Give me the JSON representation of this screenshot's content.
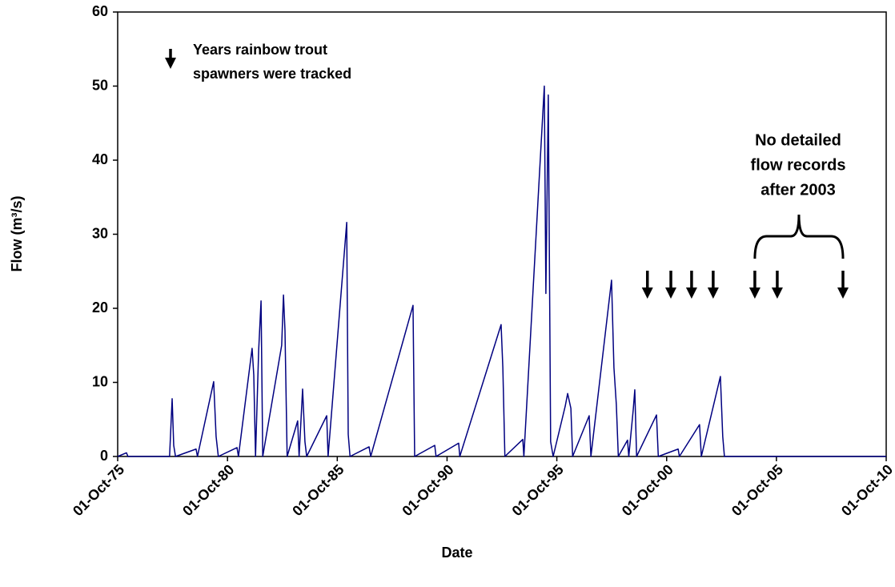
{
  "chart_data": {
    "type": "line",
    "xlabel": "Date",
    "ylabel": "Flow (m³/s)",
    "x": [
      "1975-10-01",
      "1976-02-24",
      "1976-03-20",
      "1978-02-10",
      "1978-03-25",
      "1978-04-20",
      "1978-05-20",
      "1979-04-27",
      "1979-05-20",
      "1980-02-14",
      "1980-03-25",
      "1980-05-01",
      "1981-03-08",
      "1981-04-01",
      "1981-11-14",
      "1981-12-12",
      "1982-01-10",
      "1982-03-03",
      "1982-04-12",
      "1982-05-10",
      "1983-03-21",
      "1983-04-20",
      "1983-05-15",
      "1983-06-20",
      "1983-12-12",
      "1984-01-05",
      "1984-03-03",
      "1984-04-11",
      "1984-05-10",
      "1985-04-08",
      "1985-05-01",
      "1986-03-07",
      "1986-04-01",
      "1986-05-01",
      "1987-03-14",
      "1987-04-10",
      "1989-03-14",
      "1989-04-10",
      "1990-03-10",
      "1990-04-01",
      "1991-04-12",
      "1991-05-01",
      "1993-03-18",
      "1993-04-16",
      "1993-05-20",
      "1994-03-14",
      "1994-04-01",
      "1995-03-07",
      "1995-04-02",
      "1995-05-12",
      "1995-06-20",
      "1995-08-01",
      "1996-02-18",
      "1996-03-29",
      "1996-05-22",
      "1996-06-20",
      "1997-03-22",
      "1997-04-20",
      "1998-03-29",
      "1998-05-08",
      "1998-06-17",
      "1998-07-20",
      "1998-12-20",
      "1999-01-10",
      "1999-03-25",
      "1999-04-20",
      "1999-05-20",
      "2000-04-15",
      "2000-05-15",
      "2001-04-10",
      "2001-05-01",
      "2002-04-01",
      "2002-05-01",
      "2003-03-14",
      "2003-04-22",
      "2003-05-20",
      "2010-10-01"
    ],
    "series": [
      {
        "name": "Flow",
        "color": "#000080",
        "values": [
          0,
          0.5,
          0,
          0,
          7.8,
          1.5,
          0,
          1.0,
          0,
          10.1,
          2.7,
          0,
          1.2,
          0,
          14.6,
          11,
          0,
          14.3,
          21,
          0,
          15,
          21.8,
          17,
          0,
          4.8,
          0,
          9.1,
          2,
          0,
          5.5,
          0,
          31.6,
          3,
          0,
          1.3,
          0,
          20.4,
          0,
          1.5,
          0,
          1.8,
          0,
          17.8,
          12,
          0,
          2.3,
          0,
          50,
          22,
          48.8,
          2,
          0,
          6.8,
          8.5,
          6.5,
          0,
          5.5,
          0,
          23.8,
          12,
          7,
          0,
          2.2,
          0,
          6.3,
          9,
          0,
          5.6,
          0,
          1,
          0,
          4.3,
          0,
          10.8,
          2.7,
          0,
          0
        ]
      }
    ],
    "xlim": [
      "1975-10-01",
      "2010-10-01"
    ],
    "xticks": [
      {
        "value": "1975-10-01",
        "label": "01-Oct-75"
      },
      {
        "value": "1980-10-01",
        "label": "01-Oct-80"
      },
      {
        "value": "1985-10-01",
        "label": "01-Oct-85"
      },
      {
        "value": "1990-10-01",
        "label": "01-Oct-90"
      },
      {
        "value": "1995-10-01",
        "label": "01-Oct-95"
      },
      {
        "value": "2000-10-01",
        "label": "01-Oct-00"
      },
      {
        "value": "2005-10-01",
        "label": "01-Oct-05"
      },
      {
        "value": "2010-10-01",
        "label": "01-Oct-10"
      }
    ],
    "ylim": [
      0,
      60
    ],
    "yticks": [
      0,
      10,
      20,
      30,
      40,
      50,
      60
    ],
    "legend_text": [
      "Years rainbow trout",
      "spawners were tracked"
    ],
    "tracked_years": [
      "1999-11-16",
      "2000-12-10",
      "2001-11-20",
      "2002-11-14",
      "2004-10-07",
      "2005-10-15",
      "2008-10-12"
    ],
    "annotation": [
      "No detailed",
      "flow records",
      "after 2003"
    ]
  }
}
